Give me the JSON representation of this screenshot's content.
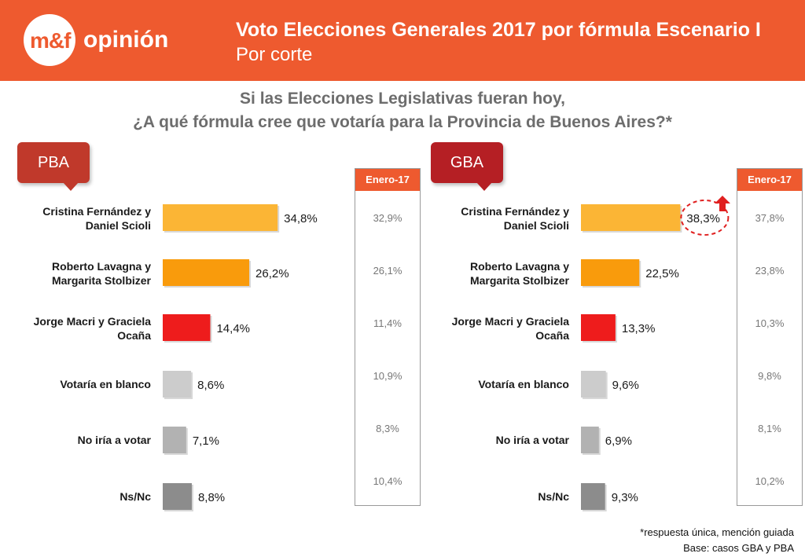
{
  "header": {
    "brand_mark": "m&f",
    "brand_name": "opinión",
    "title": "Voto Elecciones Generales 2017 por fórmula Escenario I",
    "subtitle": "Por corte"
  },
  "question": {
    "line1": "Si las Elecciones Legislativas fueran hoy,",
    "line2": "¿A qué fórmula cree que votaría para la Provincia de Buenos Aires?*"
  },
  "colors": {
    "header_bg": "#ee5a2f",
    "enero_head": "#ee5a2f",
    "highlight": "#e02020"
  },
  "chart_data": [
    {
      "type": "bar",
      "orientation": "horizontal",
      "panel": "PBA",
      "title": "PBA",
      "categories": [
        "Cristina Fernández y Daniel Scioli",
        "Roberto Lavagna y Margarita Stolbizer",
        "Jorge Macri y Graciela Ocaña",
        "Votaría en blanco",
        "No iría a votar",
        "Ns/Nc"
      ],
      "category_lines": [
        [
          "Cristina Fernández y",
          "Daniel Scioli"
        ],
        [
          "Roberto Lavagna y",
          "Margarita Stolbizer"
        ],
        [
          "Jorge Macri y Graciela",
          "Ocaña"
        ],
        [
          "Votaría en blanco"
        ],
        [
          "No iría a votar"
        ],
        [
          "Ns/Nc"
        ]
      ],
      "values": [
        34.8,
        26.2,
        14.4,
        8.6,
        7.1,
        8.8
      ],
      "value_labels": [
        "34,8%",
        "26,2%",
        "14,4%",
        "8,6%",
        "7,1%",
        "8,8%"
      ],
      "bar_colors": [
        "#fbb535",
        "#f99b0c",
        "#ee1c1c",
        "#cccccc",
        "#b2b2b2",
        "#8c8c8c"
      ],
      "comparison": {
        "label": "Enero-17",
        "value_labels": [
          "32,9%",
          "26,1%",
          "11,4%",
          "10,9%",
          "8,3%",
          "10,4%"
        ]
      }
    },
    {
      "type": "bar",
      "orientation": "horizontal",
      "panel": "GBA",
      "title": "GBA",
      "categories": [
        "Cristina Fernández y Daniel Scioli",
        "Roberto Lavagna y Margarita Stolbizer",
        "Jorge Macri y Graciela Ocaña",
        "Votaría en blanco",
        "No iría a votar",
        "Ns/Nc"
      ],
      "category_lines": [
        [
          "Cristina Fernández y",
          "Daniel Scioli"
        ],
        [
          "Roberto Lavagna y",
          "Margarita Stolbizer"
        ],
        [
          "Jorge Macri y Graciela",
          "Ocaña"
        ],
        [
          "Votaría en blanco"
        ],
        [
          "No iría a votar"
        ],
        [
          "Ns/Nc"
        ]
      ],
      "values": [
        38.3,
        22.5,
        13.3,
        9.6,
        6.9,
        9.3
      ],
      "value_labels": [
        "38,3%",
        "22,5%",
        "13,3%",
        "9,6%",
        "6,9%",
        "9,3%"
      ],
      "bar_colors": [
        "#fbb535",
        "#f99b0c",
        "#ee1c1c",
        "#cccccc",
        "#b2b2b2",
        "#8c8c8c"
      ],
      "highlighted_index": 0,
      "comparison": {
        "label": "Enero-17",
        "value_labels": [
          "37,8%",
          "23,8%",
          "10,3%",
          "9,8%",
          "8,1%",
          "10,2%"
        ]
      }
    }
  ],
  "footnote": {
    "line1": "*respuesta única, mención guiada",
    "line2": "Base: casos GBA y PBA"
  }
}
